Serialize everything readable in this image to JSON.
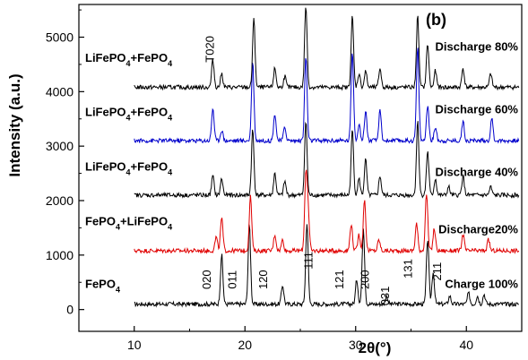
{
  "chart_data": {
    "type": "line",
    "panel_label": "(b)",
    "xlabel": "2θ(°)",
    "ylabel": "Intensity (a.u.)",
    "xlim": [
      5,
      45
    ],
    "ylim": [
      -400,
      5600
    ],
    "x_ticks": [
      10,
      20,
      30,
      40
    ],
    "y_ticks": [
      0,
      1000,
      2000,
      3000,
      4000,
      5000
    ],
    "grid": false,
    "colors": {
      "black": "#000000",
      "blue": "#0000cc",
      "red": "#e00000"
    },
    "series": [
      {
        "name": "FePO4",
        "state": "Charge 100%",
        "color": "#000000",
        "baseline": 100,
        "peaks": [
          [
            17.9,
            900
          ],
          [
            20.4,
            1450
          ],
          [
            23.4,
            350
          ],
          [
            25.6,
            1500
          ],
          [
            30.1,
            450
          ],
          [
            30.7,
            1400
          ],
          [
            32.8,
            150
          ],
          [
            36.5,
            1200
          ],
          [
            37.0,
            600
          ],
          [
            38.5,
            150
          ],
          [
            40.2,
            200
          ],
          [
            41.0,
            150
          ],
          [
            41.6,
            180
          ]
        ]
      },
      {
        "name": "FePO4+LiFePO4",
        "state": "Discharge20%",
        "color": "#e00000",
        "baseline": 1080,
        "peaks": [
          [
            17.4,
            250
          ],
          [
            17.9,
            600
          ],
          [
            20.5,
            1000
          ],
          [
            22.7,
            300
          ],
          [
            23.4,
            200
          ],
          [
            25.5,
            1350
          ],
          [
            25.7,
            700
          ],
          [
            29.6,
            500
          ],
          [
            30.3,
            300
          ],
          [
            30.8,
            950
          ],
          [
            32.1,
            200
          ],
          [
            35.5,
            500
          ],
          [
            36.4,
            1050
          ],
          [
            37.1,
            400
          ],
          [
            39.7,
            300
          ],
          [
            42.0,
            200
          ]
        ]
      },
      {
        "name": "LiFePO4+FePO4",
        "state": "Discharge 40%",
        "color": "#000000",
        "baseline": 2100,
        "peaks": [
          [
            17.1,
            350
          ],
          [
            17.9,
            300
          ],
          [
            20.7,
            1200
          ],
          [
            22.7,
            400
          ],
          [
            23.6,
            250
          ],
          [
            25.5,
            1350
          ],
          [
            29.7,
            1200
          ],
          [
            30.3,
            300
          ],
          [
            30.9,
            650
          ],
          [
            32.2,
            350
          ],
          [
            35.6,
            1350
          ],
          [
            36.5,
            800
          ],
          [
            37.2,
            300
          ],
          [
            38.4,
            150
          ],
          [
            39.7,
            350
          ],
          [
            42.2,
            150
          ]
        ]
      },
      {
        "name": "LiFePO4+FePO4",
        "state": "Discharge 60%",
        "color": "#0000cc",
        "baseline": 3100,
        "peaks": [
          [
            17.1,
            600
          ],
          [
            17.9,
            200
          ],
          [
            20.7,
            1450
          ],
          [
            22.7,
            500
          ],
          [
            23.6,
            250
          ],
          [
            25.5,
            1550
          ],
          [
            29.7,
            1650
          ],
          [
            30.3,
            300
          ],
          [
            30.9,
            550
          ],
          [
            32.2,
            550
          ],
          [
            35.6,
            1700
          ],
          [
            36.5,
            650
          ],
          [
            37.2,
            250
          ],
          [
            39.7,
            350
          ],
          [
            42.3,
            400
          ]
        ]
      },
      {
        "name": "LiFePO4+FePO4",
        "state": "Discharge 80%",
        "color": "#000000",
        "baseline": 4080,
        "peaks": [
          [
            17.1,
            500
          ],
          [
            17.9,
            250
          ],
          [
            20.8,
            1250
          ],
          [
            22.7,
            350
          ],
          [
            23.6,
            200
          ],
          [
            25.5,
            1500
          ],
          [
            29.7,
            1300
          ],
          [
            30.3,
            250
          ],
          [
            30.9,
            300
          ],
          [
            32.2,
            350
          ],
          [
            35.6,
            1300
          ],
          [
            36.5,
            800
          ],
          [
            37.2,
            300
          ],
          [
            39.7,
            350
          ],
          [
            42.2,
            250
          ]
        ]
      }
    ],
    "series_labels": [
      {
        "html_base": "FePO",
        "sub": "4",
        "tail": "",
        "y": 400
      },
      {
        "html_base": "FePO",
        "sub": "4",
        "tail": "+LiFePO",
        "sub2": "4",
        "y": 1550
      },
      {
        "html_base": "LiFePO",
        "sub": "4",
        "tail": "+FePO",
        "sub2": "4",
        "y": 2550
      },
      {
        "html_base": "LiFePO",
        "sub": "4",
        "tail": "+FePO",
        "sub2": "4",
        "y": 3550
      },
      {
        "html_base": "LiFePO",
        "sub": "4",
        "tail": "+FePO",
        "sub2": "4",
        "y": 4550
      }
    ],
    "annotations": [
      {
        "text": "020",
        "x": 16.9,
        "y": 550,
        "rotate": -90
      },
      {
        "text": "011",
        "x": 19.2,
        "y": 550,
        "rotate": -90
      },
      {
        "text": "120",
        "x": 22.0,
        "y": 550,
        "rotate": -90
      },
      {
        "text": "111",
        "x": 26.1,
        "y": 900,
        "rotate": -90
      },
      {
        "text": "121",
        "x": 28.9,
        "y": 550,
        "rotate": -90
      },
      {
        "text": "200",
        "x": 31.2,
        "y": 550,
        "rotate": -90
      },
      {
        "text": "031",
        "x": 33.0,
        "y": 250,
        "rotate": -90
      },
      {
        "text": "131",
        "x": 35.1,
        "y": 750,
        "rotate": -90
      },
      {
        "text": "211",
        "x": 37.7,
        "y": 700,
        "rotate": -90
      },
      {
        "text": "T020",
        "x": 17.2,
        "y": 4780,
        "rotate": -90
      }
    ],
    "state_labels": [
      {
        "text": "Charge 100%",
        "y": 400
      },
      {
        "text": "Discharge20%",
        "y": 1400
      },
      {
        "text": "Discharge 40%",
        "y": 2450
      },
      {
        "text": "Discharge 60%",
        "y": 3600
      },
      {
        "text": "Discharge 80%",
        "y": 4750
      }
    ]
  }
}
